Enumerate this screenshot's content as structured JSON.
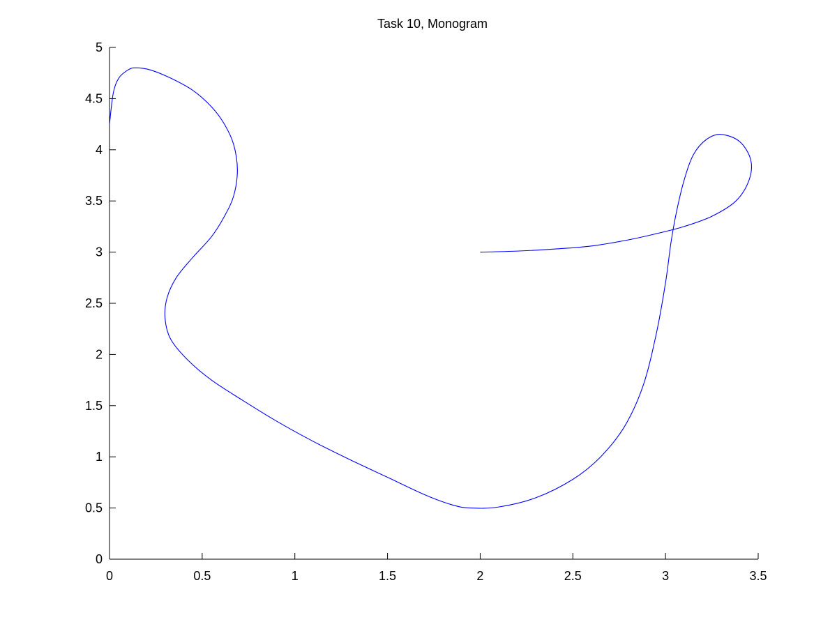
{
  "chart_data": {
    "type": "line",
    "title": "Task 10, Monogram",
    "xlabel": "",
    "ylabel": "",
    "xlim": [
      0,
      3.5
    ],
    "ylim": [
      0,
      5
    ],
    "x_ticks": [
      0,
      0.5,
      1,
      1.5,
      2,
      2.5,
      3,
      3.5
    ],
    "x_tick_labels": [
      "0",
      "0.5",
      "1",
      "1.5",
      "2",
      "2.5",
      "3",
      "3.5"
    ],
    "y_ticks": [
      0,
      0.5,
      1,
      1.5,
      2,
      2.5,
      3,
      3.5,
      4,
      4.5,
      5
    ],
    "y_tick_labels": [
      "0",
      "0.5",
      "1",
      "1.5",
      "2",
      "2.5",
      "3",
      "3.5",
      "4",
      "4.5",
      "5"
    ],
    "grid": false,
    "legend": "none",
    "series": [
      {
        "color": "#0000ff",
        "points": [
          [
            0.0,
            4.25
          ],
          [
            0.02,
            4.55
          ],
          [
            0.05,
            4.7
          ],
          [
            0.1,
            4.78
          ],
          [
            0.14,
            4.8
          ],
          [
            0.22,
            4.78
          ],
          [
            0.33,
            4.7
          ],
          [
            0.45,
            4.58
          ],
          [
            0.55,
            4.42
          ],
          [
            0.62,
            4.25
          ],
          [
            0.67,
            4.05
          ],
          [
            0.69,
            3.8
          ],
          [
            0.67,
            3.55
          ],
          [
            0.62,
            3.35
          ],
          [
            0.55,
            3.15
          ],
          [
            0.45,
            2.95
          ],
          [
            0.36,
            2.75
          ],
          [
            0.31,
            2.55
          ],
          [
            0.3,
            2.35
          ],
          [
            0.33,
            2.15
          ],
          [
            0.42,
            1.95
          ],
          [
            0.55,
            1.75
          ],
          [
            0.72,
            1.55
          ],
          [
            0.9,
            1.35
          ],
          [
            1.1,
            1.15
          ],
          [
            1.3,
            0.97
          ],
          [
            1.5,
            0.8
          ],
          [
            1.7,
            0.63
          ],
          [
            1.85,
            0.53
          ],
          [
            1.95,
            0.5
          ],
          [
            2.1,
            0.51
          ],
          [
            2.3,
            0.6
          ],
          [
            2.5,
            0.78
          ],
          [
            2.65,
            1.0
          ],
          [
            2.78,
            1.3
          ],
          [
            2.88,
            1.7
          ],
          [
            2.95,
            2.2
          ],
          [
            3.0,
            2.7
          ],
          [
            3.03,
            3.1
          ],
          [
            3.06,
            3.4
          ],
          [
            3.1,
            3.7
          ],
          [
            3.15,
            3.95
          ],
          [
            3.22,
            4.1
          ],
          [
            3.3,
            4.15
          ],
          [
            3.4,
            4.08
          ],
          [
            3.46,
            3.9
          ],
          [
            3.45,
            3.7
          ],
          [
            3.38,
            3.5
          ],
          [
            3.25,
            3.35
          ],
          [
            3.1,
            3.25
          ],
          [
            2.95,
            3.18
          ],
          [
            2.8,
            3.12
          ],
          [
            2.6,
            3.06
          ],
          [
            2.4,
            3.03
          ],
          [
            2.2,
            3.01
          ],
          [
            2.0,
            3.0
          ]
        ]
      }
    ]
  }
}
